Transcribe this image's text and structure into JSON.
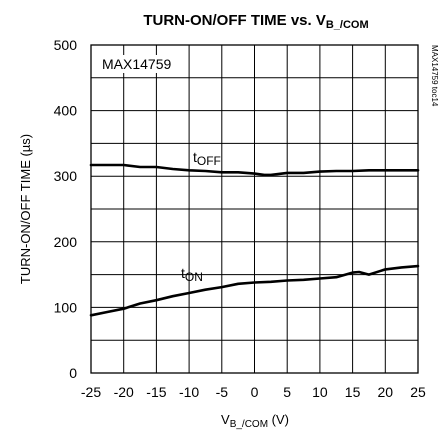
{
  "chart_data": {
    "type": "line",
    "title": {
      "main": "TURN-ON/OFF TIME vs. V",
      "sub": "B_/COM"
    },
    "ylabel": "TURN-ON/OFF TIME (µs)",
    "xlabel": {
      "main": "V",
      "sub": "B_/COM",
      "unit": " (V)"
    },
    "xlim": [
      -25,
      25
    ],
    "ylim": [
      0,
      500
    ],
    "xticks": [
      -25,
      -20,
      -15,
      -10,
      -5,
      0,
      5,
      10,
      15,
      20,
      25
    ],
    "yticks": [
      0,
      100,
      200,
      300,
      400,
      500
    ],
    "grid": true,
    "device_label": "MAX14759",
    "side_id": "MAX14759 toc14",
    "series": [
      {
        "name": {
          "main": "t",
          "sub": "OFF"
        },
        "x": [
          -25,
          -20,
          -17.5,
          -15,
          -12.5,
          -10,
          -7.5,
          -5,
          -2.5,
          0,
          1.5,
          2.5,
          5,
          7.5,
          10,
          12.5,
          15,
          17.5,
          20,
          22.5,
          25
        ],
        "y": [
          317,
          317,
          314,
          314,
          311,
          309,
          308,
          306,
          306,
          304,
          302,
          302,
          305,
          305,
          307,
          308,
          308,
          309,
          309,
          309,
          309
        ]
      },
      {
        "name": {
          "main": "t",
          "sub": "ON"
        },
        "x": [
          -25,
          -22.5,
          -20,
          -17.5,
          -15,
          -12.5,
          -10,
          -7.5,
          -5,
          -2.5,
          0,
          2.5,
          5,
          7.5,
          10,
          12.5,
          15,
          16,
          17.5,
          20,
          22.5,
          25
        ],
        "y": [
          88,
          93,
          98,
          106,
          111,
          117,
          122,
          127,
          131,
          136,
          138,
          139,
          141,
          142,
          144,
          146,
          153,
          154,
          150,
          158,
          161,
          163
        ]
      }
    ]
  }
}
